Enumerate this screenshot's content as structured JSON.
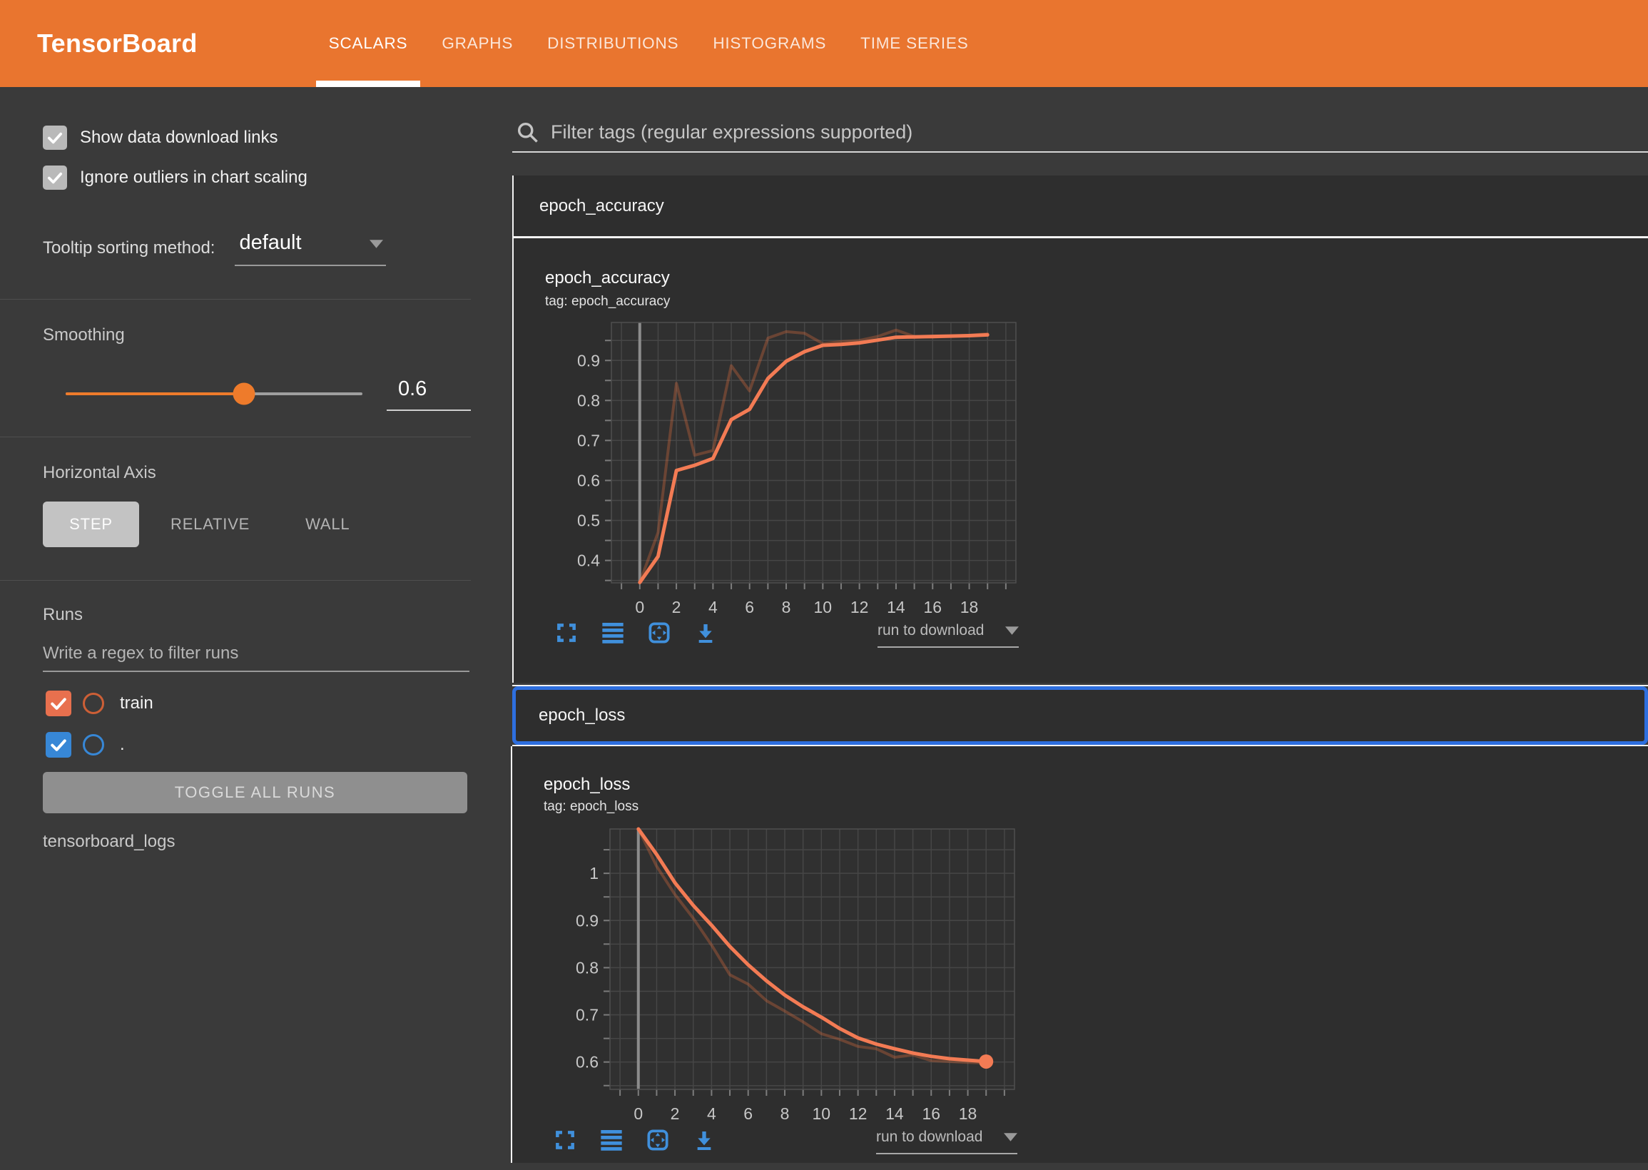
{
  "header": {
    "logo": "TensorBoard",
    "tabs": [
      {
        "label": "SCALARS",
        "active": true
      },
      {
        "label": "GRAPHS",
        "active": false
      },
      {
        "label": "DISTRIBUTIONS",
        "active": false
      },
      {
        "label": "HISTOGRAMS",
        "active": false
      },
      {
        "label": "TIME SERIES",
        "active": false
      }
    ]
  },
  "sidebar": {
    "checkboxes": [
      {
        "label": "Show data download links",
        "checked": true
      },
      {
        "label": "Ignore outliers in chart scaling",
        "checked": true
      }
    ],
    "tooltip_sorting": {
      "label": "Tooltip sorting method:",
      "value": "default"
    },
    "smoothing": {
      "label": "Smoothing",
      "value": "0.6",
      "fraction": 0.6
    },
    "horizontal_axis": {
      "label": "Horizontal Axis",
      "options": [
        "STEP",
        "RELATIVE",
        "WALL"
      ],
      "selected": "STEP"
    },
    "runs": {
      "label": "Runs",
      "filter_placeholder": "Write a regex to filter runs",
      "items": [
        {
          "label": "train",
          "checked": true,
          "color": "#e8704e"
        },
        {
          "label": ".",
          "checked": true,
          "color": "#3787d6"
        }
      ],
      "toggle_all_label": "TOGGLE ALL RUNS",
      "directory": "tensorboard_logs"
    }
  },
  "main": {
    "filter_placeholder": "Filter tags (regular expressions supported)",
    "download_label": "run to download",
    "sections": [
      {
        "title": "epoch_accuracy",
        "focused": false
      },
      {
        "title": "epoch_loss",
        "focused": true
      }
    ]
  },
  "colors": {
    "header_bg": "#e9752f",
    "main_bg": "#3a3a3a",
    "card_bg": "#2e2e2e",
    "accent_orange": "#ee7b2b",
    "line_smoothed": "#f37b54",
    "line_raw": "#e06e3c",
    "icon_blue": "#4090dc",
    "focus_blue": "#2e6fdf",
    "run_train_color": "#e8704e",
    "run_dot_color": "#3787d6"
  },
  "chart_style": {
    "grid": "#464646",
    "zero_line": "#8c8c8c",
    "tick": "#7c7c7c",
    "label": "#c7c7c7",
    "border": "#4f4f4f",
    "plot_bg": "#303030"
  },
  "chart_data": [
    {
      "type": "line",
      "title": "epoch_accuracy",
      "tag": "tag: epoch_accuracy",
      "x": [
        0,
        1,
        2,
        3,
        4,
        5,
        6,
        7,
        8,
        9,
        10,
        11,
        12,
        13,
        14,
        15,
        16,
        17,
        18,
        19
      ],
      "series": [
        {
          "name": "train (raw)",
          "color": "#e06e3c",
          "opacity": 0.33,
          "width": 4,
          "end_dot": false,
          "values": [
            0.345,
            0.47,
            0.843,
            0.663,
            0.675,
            0.887,
            0.824,
            0.956,
            0.972,
            0.968,
            0.942,
            0.947,
            0.95,
            0.96,
            0.976,
            0.96,
            0.958,
            0.961,
            0.963,
            0.967
          ]
        },
        {
          "name": "train (smoothed 0.6)",
          "color": "#f37b54",
          "opacity": 1,
          "width": 5,
          "end_dot": false,
          "values": [
            0.345,
            0.41,
            0.625,
            0.638,
            0.655,
            0.752,
            0.778,
            0.855,
            0.898,
            0.922,
            0.938,
            0.94,
            0.944,
            0.951,
            0.958,
            0.959,
            0.96,
            0.961,
            0.962,
            0.964
          ]
        }
      ],
      "xlim": [
        -1.55,
        20.55
      ],
      "ylim": [
        0.344,
        0.995
      ],
      "x_grid_step": 1,
      "y_grid_step": 0.05,
      "xtick_labels": [
        "0",
        "2",
        "4",
        "6",
        "8",
        "10",
        "12",
        "14",
        "16",
        "18"
      ],
      "ytick_labels": [
        "0.4",
        "0.5",
        "0.6",
        "0.7",
        "0.8",
        "0.9"
      ],
      "zero_line_x": 0,
      "legend": "off"
    },
    {
      "type": "line",
      "title": "epoch_loss",
      "tag": "tag: epoch_loss",
      "x": [
        0,
        1,
        2,
        3,
        4,
        5,
        6,
        7,
        8,
        9,
        10,
        11,
        12,
        13,
        14,
        15,
        16,
        17,
        18,
        19
      ],
      "series": [
        {
          "name": "train (raw)",
          "color": "#e06e3c",
          "opacity": 0.33,
          "width": 4,
          "end_dot": false,
          "values": [
            1.094,
            1.015,
            0.955,
            0.905,
            0.848,
            0.785,
            0.765,
            0.73,
            0.708,
            0.685,
            0.66,
            0.648,
            0.633,
            0.628,
            0.61,
            0.615,
            0.603,
            0.601,
            0.599,
            0.598
          ]
        },
        {
          "name": "train (smoothed 0.6)",
          "color": "#f37b54",
          "opacity": 1,
          "width": 5,
          "end_dot": true,
          "values": [
            1.094,
            1.04,
            0.98,
            0.932,
            0.89,
            0.845,
            0.806,
            0.772,
            0.742,
            0.717,
            0.695,
            0.671,
            0.651,
            0.638,
            0.628,
            0.619,
            0.612,
            0.607,
            0.604,
            0.601
          ]
        }
      ],
      "xlim": [
        -1.55,
        20.55
      ],
      "ylim": [
        0.542,
        1.094
      ],
      "x_grid_step": 1,
      "y_grid_step": 0.05,
      "xtick_labels": [
        "0",
        "2",
        "4",
        "6",
        "8",
        "10",
        "12",
        "14",
        "16",
        "18"
      ],
      "ytick_labels": [
        "0.6",
        "0.7",
        "0.8",
        "0.9",
        "1"
      ],
      "zero_line_x": 0,
      "legend": "off"
    }
  ]
}
